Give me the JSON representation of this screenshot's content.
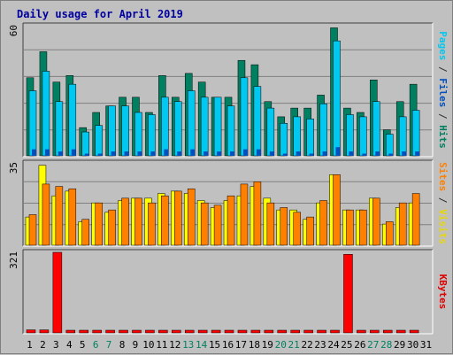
{
  "chart_data": {
    "type": "bar",
    "title": "Daily usage for April 2019",
    "categories": [
      "1",
      "2",
      "3",
      "4",
      "5",
      "6",
      "7",
      "8",
      "9",
      "10",
      "11",
      "12",
      "13",
      "14",
      "15",
      "16",
      "17",
      "18",
      "19",
      "20",
      "21",
      "22",
      "23",
      "24",
      "25",
      "26",
      "27",
      "28",
      "29",
      "30",
      "31"
    ],
    "weekend_days": [
      "6",
      "7",
      "13",
      "14",
      "20",
      "21",
      "27",
      "28"
    ],
    "panels": [
      {
        "id": "top",
        "ymax": 60,
        "ytick_label": "60",
        "ylabel_parts": [
          {
            "text": "Pages",
            "color": "#00c8f0"
          },
          {
            "text": " / ",
            "color": "#303030"
          },
          {
            "text": "Files",
            "color": "#0050c0"
          },
          {
            "text": " / ",
            "color": "#303030"
          },
          {
            "text": "Hits",
            "color": "#008060"
          }
        ],
        "series": [
          {
            "name": "Hits",
            "color": "#008060",
            "values": [
              36,
              48,
              34,
              37,
              13,
              20,
              23,
              27,
              27,
              20,
              37,
              27,
              38,
              34,
              27,
              27,
              44,
              42,
              25,
              18,
              22,
              22,
              28,
              59,
              22,
              20,
              35,
              12,
              25,
              33,
              0
            ]
          },
          {
            "name": "Files",
            "color": "#00c8f0",
            "values": [
              30,
              39,
              25,
              33,
              11,
              14,
              23,
              23,
              20,
              19,
              27,
              25,
              30,
              27,
              27,
              23,
              36,
              32,
              22,
              15,
              18,
              17,
              24,
              53,
              19,
              18,
              25,
              10,
              18,
              21,
              0
            ]
          },
          {
            "name": "Pages",
            "color": "#0050c0",
            "values": [
              3,
              3,
              2,
              3,
              1,
              1,
              2,
              2,
              2,
              2,
              3,
              2,
              3,
              2,
              2,
              2,
              3,
              3,
              2,
              1,
              2,
              1,
              2,
              4,
              2,
              1,
              2,
              1,
              2,
              2,
              0
            ]
          }
        ]
      },
      {
        "id": "middle",
        "ymax": 35,
        "ytick_label": "35",
        "ylabel_parts": [
          {
            "text": "Sites",
            "color": "#ff8000"
          },
          {
            "text": " / ",
            "color": "#303030"
          },
          {
            "text": "Visits",
            "color": "#e8d800"
          }
        ],
        "series": [
          {
            "name": "Visits",
            "color": "#ffff00",
            "values": [
              12,
              34,
              21,
              23,
              10,
              18,
              14,
              19,
              20,
              20,
              22,
              23,
              22,
              19,
              16,
              19,
              21,
              25,
              20,
              15,
              15,
              11,
              18,
              30,
              15,
              15,
              20,
              9,
              16,
              18,
              0
            ]
          },
          {
            "name": "Sites",
            "color": "#ff8000",
            "values": [
              13,
              26,
              25,
              24,
              11,
              18,
              15,
              20,
              20,
              18,
              21,
              23,
              24,
              18,
              17,
              21,
              26,
              27,
              18,
              16,
              14,
              12,
              19,
              30,
              15,
              15,
              20,
              10,
              18,
              22,
              0
            ]
          }
        ]
      },
      {
        "id": "bottom",
        "ymax": 321,
        "ytick_label": "321",
        "ylabel_parts": [
          {
            "text": "KBytes",
            "color": "#e00000"
          }
        ],
        "series": [
          {
            "name": "KBytes",
            "color": "#ff0000",
            "values": [
              12,
              12,
              321,
              6,
              6,
              7,
              7,
              7,
              8,
              8,
              8,
              10,
              10,
              10,
              10,
              7,
              7,
              10,
              10,
              10,
              8,
              7,
              7,
              10,
              313,
              7,
              10,
              7,
              10,
              8,
              0
            ]
          }
        ]
      }
    ]
  }
}
